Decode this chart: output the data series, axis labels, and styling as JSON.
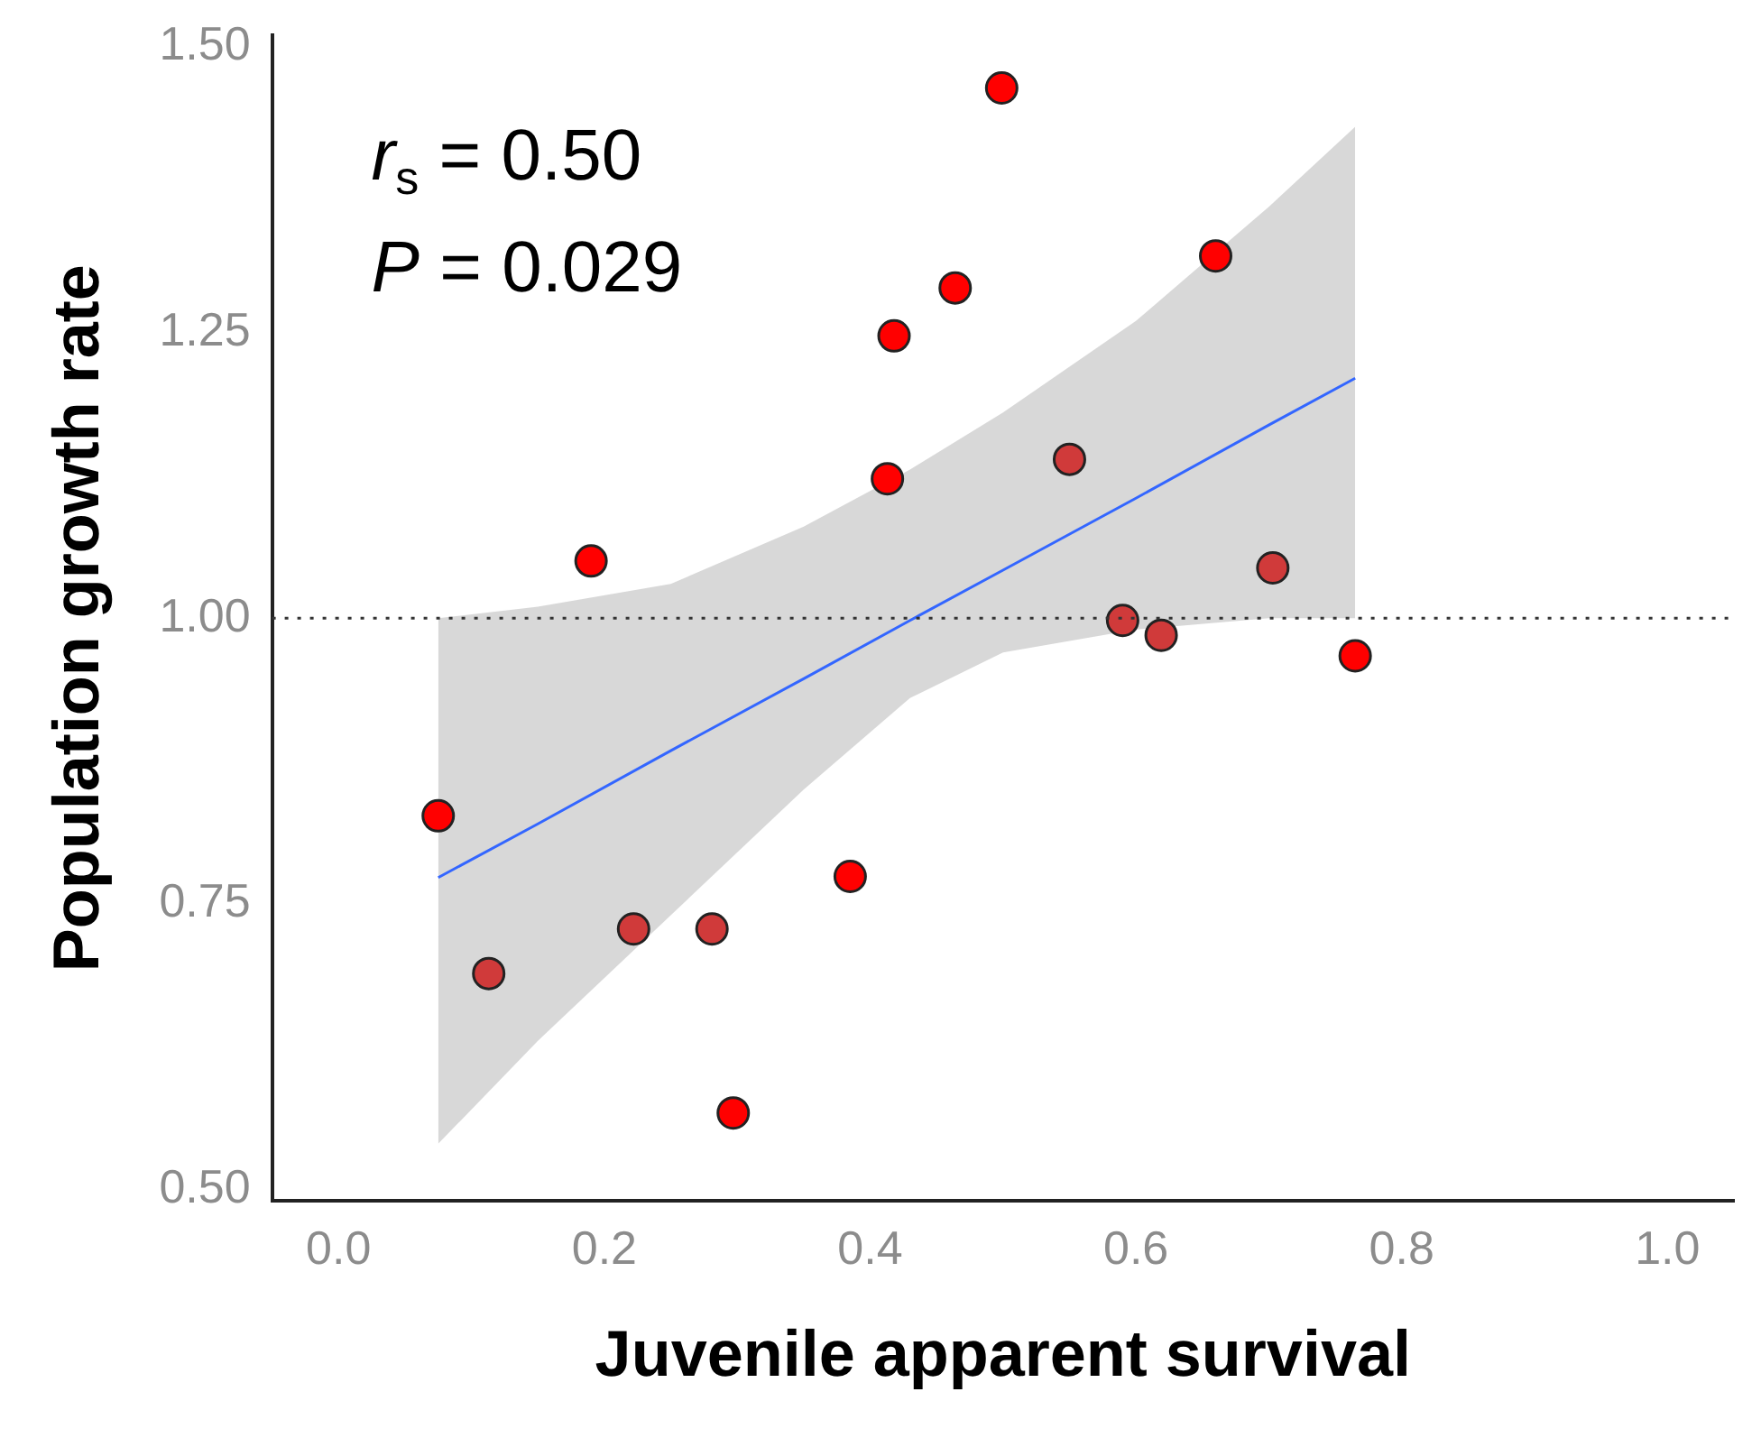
{
  "chart_data": {
    "type": "scatter",
    "xlabel": "Juvenile apparent survival",
    "ylabel": "Population growth rate",
    "annotations": [
      "r$_{s}$ = 0.50",
      "P = 0.029"
    ],
    "xlim": [
      -0.05,
      1.05
    ],
    "xticks": [
      {
        "value": 0,
        "label": "0.0"
      },
      0.2,
      0.4,
      0.6,
      0.8,
      {
        "value": 1,
        "label": "1.0"
      }
    ],
    "ylim": [
      0.49,
      1.51
    ],
    "yticks": [
      {
        "value": 0.5,
        "label": "0.50"
      },
      0.75,
      {
        "value": 1,
        "label": "1.00"
      },
      1.25,
      {
        "value": 1.5,
        "label": "1.50"
      }
    ],
    "grid": false,
    "legend": false,
    "ref_lines": [
      {
        "axis": "y",
        "value": 1,
        "line_style": "dotted",
        "color": "#333333"
      }
    ],
    "series": [
      {
        "type": "line",
        "color": "#3366ff",
        "marker": "none",
        "x": [
          0.075,
          0.15,
          0.25,
          0.35,
          0.43,
          0.5,
          0.6,
          0.7,
          0.765
        ],
        "values": [
          0.773,
          0.82,
          0.884,
          0.947,
          0.998,
          1.042,
          1.105,
          1.169,
          1.21
        ],
        "lower": [
          0.54,
          0.63,
          0.74,
          0.85,
          0.93,
          0.97,
          0.99,
          1.0,
          1.0
        ],
        "upper": [
          1.0,
          1.01,
          1.03,
          1.08,
          1.13,
          1.18,
          1.26,
          1.36,
          1.43
        ]
      },
      {
        "marker": "circle",
        "x": [
          0.075,
          0.113,
          0.19,
          0.222,
          0.281,
          0.297,
          0.385,
          0.413,
          0.418,
          0.464,
          0.499,
          0.55,
          0.59,
          0.619,
          0.66,
          0.703,
          0.765
        ],
        "values": [
          0.827,
          0.689,
          1.05,
          0.728,
          0.728,
          0.567,
          0.774,
          1.122,
          1.247,
          1.289,
          1.464,
          1.139,
          0.998,
          0.985,
          1.317,
          1.044,
          0.967
        ],
        "colors": [
          "#ff0000",
          "#d03a3a",
          "#ff0000",
          "#d03a3a",
          "#d03a3a",
          "#ff0000",
          "#ff0000",
          "#ff0000",
          "#ff0000",
          "#ff0000",
          "#ff0000",
          "#d03a3a",
          "#d03a3a",
          "#d03a3a",
          "#ff0000",
          "#d03a3a",
          "#ff0000"
        ]
      }
    ]
  }
}
